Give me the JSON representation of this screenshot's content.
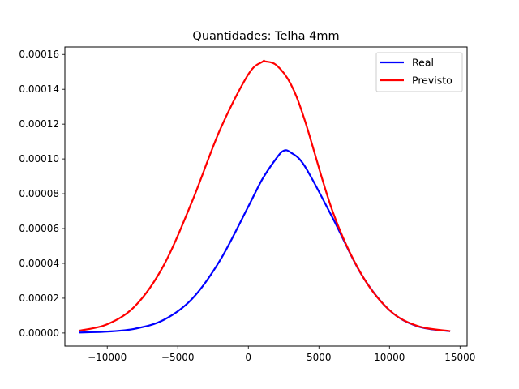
{
  "chart_data": {
    "type": "line",
    "title": "Quantidades: Telha 4mm",
    "xlabel": "",
    "ylabel": "",
    "xlim": [
      -13000,
      15500
    ],
    "ylim": [
      -7.5e-06,
      0.0001643
    ],
    "x_ticks": [
      -10000,
      -5000,
      0,
      5000,
      10000,
      15000
    ],
    "x_tick_labels": [
      "−10000",
      "−5000",
      "0",
      "5000",
      "10000",
      "15000"
    ],
    "y_ticks": [
      0,
      2e-05,
      4e-05,
      6e-05,
      8e-05,
      0.0001,
      0.00012,
      0.00014,
      0.00016
    ],
    "y_tick_labels": [
      "0.00000",
      "0.00002",
      "0.00004",
      "0.00006",
      "0.00008",
      "0.00010",
      "0.00012",
      "0.00014",
      "0.00016"
    ],
    "grid": false,
    "legend_position": "top-right",
    "series": [
      {
        "name": "Real",
        "color": "#0000ff",
        "x": [
          -12000,
          -10000,
          -8000,
          -6000,
          -4000,
          -2000,
          0,
          1000,
          2000,
          2500,
          3000,
          4000,
          6000,
          8000,
          10000,
          12000,
          14300
        ],
        "y": [
          3e-07,
          8e-07,
          2.5e-06,
          7.5e-06,
          1.95e-05,
          4.18e-05,
          7.27e-05,
          8.85e-05,
          0.0001005,
          0.0001047,
          0.0001037,
          9.58e-05,
          6.57e-05,
          3.38e-05,
          1.31e-05,
          3.8e-06,
          1e-06
        ]
      },
      {
        "name": "Previsto",
        "color": "#ff0000",
        "x": [
          -12000,
          -10000,
          -8000,
          -6000,
          -4000,
          -2000,
          0,
          1000,
          1200,
          2000,
          3000,
          4000,
          6000,
          8000,
          10000,
          12000,
          14300
        ],
        "y": [
          1.3e-06,
          5e-06,
          1.57e-05,
          3.88e-05,
          7.53e-05,
          0.0001169,
          0.0001486,
          0.0001558,
          0.000156,
          0.0001538,
          0.0001431,
          0.0001222,
          6.92e-05,
          3.39e-05,
          1.31e-05,
          4e-06,
          1.1e-06
        ]
      }
    ]
  }
}
